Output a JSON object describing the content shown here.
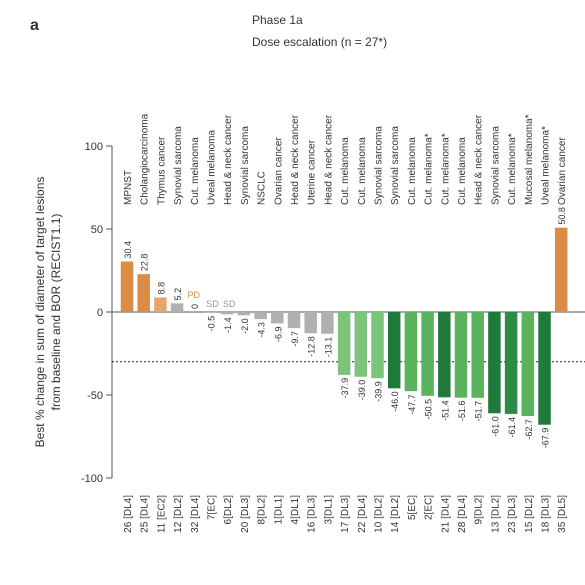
{
  "panel_label": "a",
  "chart_data": {
    "type": "bar",
    "title": "Phase 1a",
    "subtitle": "Dose escalation (n = 27*)",
    "y_label": [
      "Best % change in sum of diameter of target lesions",
      "from baseline and BOR (RECIST1.1)"
    ],
    "categories": [
      "26 [DL4]",
      "25 [DL4]",
      "11 [EC2]",
      "12 [DL2]",
      "32 [DL4]",
      "7[EC]",
      "6[DL2]",
      "20 [DL3]",
      "8[DL2]",
      "1[DL1]",
      "4[DL1]",
      "16 [DL3]",
      "3[DL1]",
      "17 [DL3]",
      "22 [DL4]",
      "10 [DL2]",
      "14 [DL2]",
      "5[EC]",
      "2[EC]",
      "21 [DL4]",
      "28 [DL4]",
      "9[DL2]",
      "13 [DL2]",
      "23 [DL3]",
      "15 [DL2]",
      "18 [DL3]",
      "35 [DL5]"
    ],
    "tumor_types": [
      "MPNST",
      "Cholangiocarcinoma",
      "Thymus cancer",
      "Synovial sarcoma",
      "Cut. melanoma",
      "Uveal melanoma",
      "Head & neck cancer",
      "Synovial sarcoma",
      "NSCLC",
      "Ovarian cancer",
      "Head & neck cancer",
      "Uterine cancer",
      "Head & neck cancer",
      "Cut. melanoma",
      "Cut. melanoma",
      "Synovial sarcoma",
      "Synovial sarcoma",
      "Cut. melanoma",
      "Cut. melanoma*",
      "Cut. melanoma*",
      "Cut. melanoma",
      "Head & neck cancer",
      "Synovial sarcoma",
      "Cut. melanoma*",
      "Mucosal melanoma*",
      "Uveal melanoma*",
      "Ovarian cancer"
    ],
    "values": [
      30.4,
      22.8,
      8.8,
      5.2,
      0,
      -0.5,
      -1.4,
      -2.0,
      -4.3,
      -6.9,
      -9.7,
      -12.8,
      -13.1,
      -37.9,
      -39.0,
      -39.9,
      -46.0,
      -47.7,
      -50.5,
      -51.4,
      -51.6,
      -51.7,
      -61.0,
      -61.4,
      -62.7,
      -67.9,
      50.8
    ],
    "value_labels": [
      "30.4",
      "22.8",
      "8.8",
      "5.2",
      "0",
      "-0.5",
      "-1.4",
      "-2.0",
      "-4.3",
      "-6.9",
      "-9.7",
      "-12.8",
      "-13.1",
      "-37.9",
      "-39.0",
      "-39.9",
      "-46.0",
      "-47.7",
      "-50.5",
      "-51.4",
      "-51.6",
      "-51.7",
      "-61.0",
      "-61.4",
      "-62.7",
      "-67.9",
      "50.8"
    ],
    "response_labels": [
      null,
      null,
      null,
      null,
      "PD",
      "SD",
      "SD",
      null,
      null,
      null,
      null,
      null,
      null,
      null,
      null,
      null,
      null,
      null,
      null,
      null,
      null,
      null,
      null,
      null,
      null,
      null,
      null
    ],
    "colors": [
      "#d98c45",
      "#d98c45",
      "#e6a66b",
      "#b0b0b0",
      "#d98c45",
      "#b0b0b0",
      "#b0b0b0",
      "#b0b0b0",
      "#b0b0b0",
      "#b0b0b0",
      "#b0b0b0",
      "#b0b0b0",
      "#b0b0b0",
      "#7cc47c",
      "#7cc47c",
      "#7cc47c",
      "#1f7a3c",
      "#5bb35e",
      "#5bb35e",
      "#1f7a3c",
      "#5bb35e",
      "#5bb35e",
      "#1f7a3c",
      "#2e8b46",
      "#5bb35e",
      "#1f7a3c",
      "#d98c45"
    ],
    "ylim": [
      -100,
      100
    ],
    "yticks": [
      -100,
      -50,
      0,
      50,
      100
    ],
    "reference_line": -30
  }
}
